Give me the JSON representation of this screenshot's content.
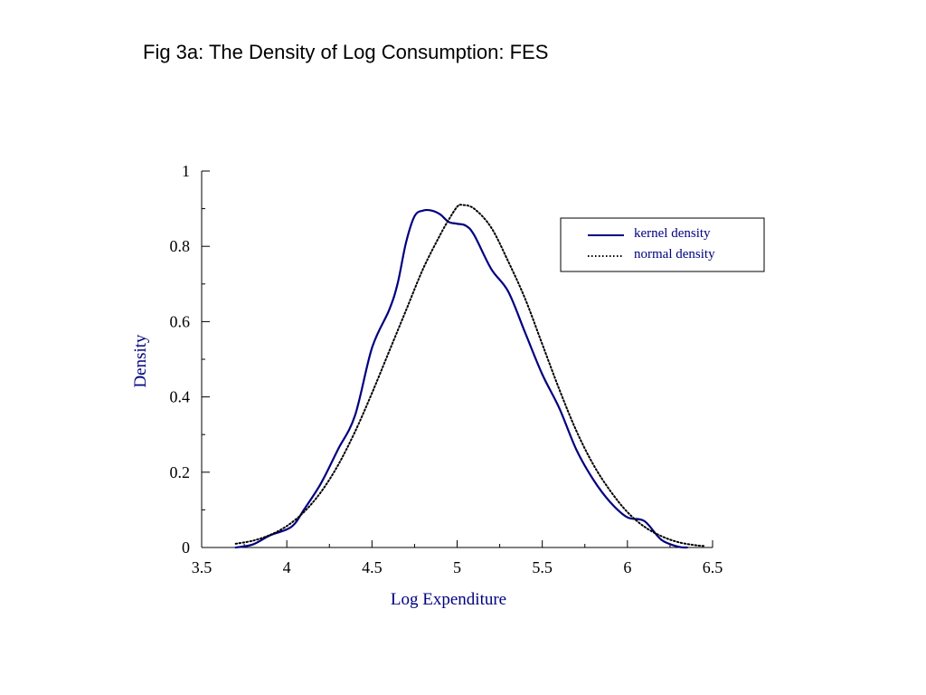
{
  "page": {
    "title": "Fig 3a: The Density of Log Consumption: FES"
  },
  "chart_data": {
    "type": "line",
    "xlabel": "Log Expenditure",
    "ylabel": "Density",
    "xlim": [
      3.5,
      6.5
    ],
    "ylim": [
      0,
      1
    ],
    "x_ticks": [
      "3.5",
      "4",
      "4.5",
      "5",
      "5.5",
      "6",
      "6.5"
    ],
    "y_ticks": [
      "0",
      "0.2",
      "0.4",
      "0.6",
      "0.8",
      "1"
    ],
    "grid": false,
    "legend_position": "top-right",
    "colors": {
      "kernel": "#000080",
      "normal": "#000000"
    },
    "series": [
      {
        "name": "kernel density",
        "style": "solid",
        "points": [
          [
            3.7,
            0.0
          ],
          [
            3.8,
            0.008
          ],
          [
            3.9,
            0.032
          ],
          [
            4.0,
            0.048
          ],
          [
            4.05,
            0.065
          ],
          [
            4.1,
            0.1
          ],
          [
            4.2,
            0.17
          ],
          [
            4.3,
            0.26
          ],
          [
            4.4,
            0.35
          ],
          [
            4.5,
            0.53
          ],
          [
            4.6,
            0.63
          ],
          [
            4.65,
            0.7
          ],
          [
            4.7,
            0.81
          ],
          [
            4.75,
            0.88
          ],
          [
            4.8,
            0.895
          ],
          [
            4.85,
            0.895
          ],
          [
            4.9,
            0.885
          ],
          [
            4.95,
            0.865
          ],
          [
            5.0,
            0.86
          ],
          [
            5.05,
            0.855
          ],
          [
            5.1,
            0.83
          ],
          [
            5.2,
            0.74
          ],
          [
            5.3,
            0.68
          ],
          [
            5.4,
            0.57
          ],
          [
            5.5,
            0.46
          ],
          [
            5.6,
            0.37
          ],
          [
            5.7,
            0.26
          ],
          [
            5.8,
            0.18
          ],
          [
            5.9,
            0.12
          ],
          [
            6.0,
            0.08
          ],
          [
            6.1,
            0.07
          ],
          [
            6.2,
            0.02
          ],
          [
            6.3,
            0.002
          ],
          [
            6.35,
            0.0
          ]
        ]
      },
      {
        "name": "normal density",
        "style": "dotted",
        "points": [
          [
            3.7,
            0.01
          ],
          [
            3.8,
            0.018
          ],
          [
            3.9,
            0.033
          ],
          [
            4.0,
            0.057
          ],
          [
            4.1,
            0.094
          ],
          [
            4.2,
            0.147
          ],
          [
            4.3,
            0.218
          ],
          [
            4.4,
            0.307
          ],
          [
            4.5,
            0.41
          ],
          [
            4.6,
            0.52
          ],
          [
            4.7,
            0.63
          ],
          [
            4.8,
            0.74
          ],
          [
            4.9,
            0.83
          ],
          [
            4.95,
            0.87
          ],
          [
            5.0,
            0.905
          ],
          [
            5.03,
            0.91
          ],
          [
            5.1,
            0.9
          ],
          [
            5.2,
            0.85
          ],
          [
            5.3,
            0.76
          ],
          [
            5.4,
            0.66
          ],
          [
            5.5,
            0.54
          ],
          [
            5.6,
            0.42
          ],
          [
            5.7,
            0.31
          ],
          [
            5.8,
            0.22
          ],
          [
            5.9,
            0.15
          ],
          [
            6.0,
            0.094
          ],
          [
            6.1,
            0.055
          ],
          [
            6.2,
            0.03
          ],
          [
            6.3,
            0.014
          ],
          [
            6.4,
            0.006
          ],
          [
            6.45,
            0.004
          ]
        ]
      }
    ]
  }
}
